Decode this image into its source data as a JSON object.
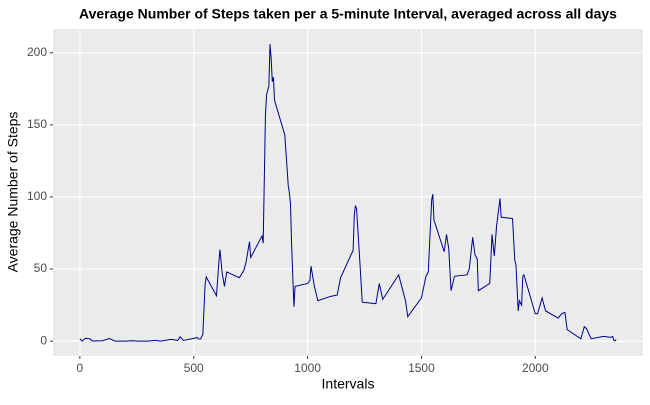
{
  "chart_data": {
    "type": "line",
    "title": "Average Number of Steps taken per a 5-minute Interval, averaged across all days",
    "x_label": "Intervals",
    "y_label": "Average Number of Steps",
    "x": [
      0,
      10,
      25,
      45,
      55,
      100,
      130,
      155,
      200,
      230,
      255,
      300,
      330,
      355,
      400,
      430,
      440,
      455,
      505,
      515,
      520,
      530,
      540,
      550,
      555,
      600,
      610,
      615,
      625,
      635,
      645,
      700,
      720,
      730,
      745,
      750,
      800,
      805,
      815,
      820,
      830,
      835,
      840,
      845,
      850,
      855,
      900,
      915,
      920,
      925,
      930,
      940,
      945,
      1000,
      1010,
      1015,
      1030,
      1045,
      1100,
      1130,
      1145,
      1200,
      1205,
      1210,
      1215,
      1230,
      1240,
      1300,
      1315,
      1330,
      1400,
      1430,
      1440,
      1500,
      1520,
      1530,
      1545,
      1550,
      1555,
      1600,
      1610,
      1620,
      1630,
      1645,
      1700,
      1710,
      1725,
      1735,
      1745,
      1750,
      1800,
      1810,
      1820,
      1830,
      1845,
      1850,
      1900,
      1910,
      1915,
      1925,
      1930,
      1940,
      1945,
      1950,
      2000,
      2010,
      2030,
      2045,
      2100,
      2115,
      2130,
      2140,
      2200,
      2215,
      2225,
      2245,
      2300,
      2330,
      2340,
      2345,
      2350,
      2355
    ],
    "values": [
      1.7,
      0.1,
      2.1,
      1.5,
      0.1,
      0.3,
      1.8,
      0,
      0,
      0.3,
      0,
      0,
      0.5,
      0,
      1.2,
      0.5,
      3,
      0.5,
      2.1,
      2.6,
      1.6,
      1.5,
      4.6,
      39.5,
      44.5,
      31.5,
      53.8,
      63.5,
      47,
      38,
      48,
      44,
      49,
      55,
      69,
      58,
      73,
      68,
      157,
      171,
      177,
      206,
      196,
      180,
      183,
      167,
      143,
      108,
      103,
      95,
      66,
      24,
      38,
      40,
      42,
      52,
      38,
      28,
      31,
      32,
      44,
      63,
      87,
      94,
      92,
      54,
      27,
      26,
      40,
      29,
      46,
      28,
      17,
      30,
      45,
      48,
      98,
      102,
      84,
      62,
      74,
      64,
      35,
      45,
      46,
      50,
      72,
      60,
      57,
      35,
      40,
      74,
      59,
      80,
      99,
      86,
      85,
      56,
      53,
      21,
      28,
      25,
      45,
      46,
      19,
      19,
      30,
      21,
      16,
      19,
      20,
      8,
      1.6,
      10,
      8.7,
      1.7,
      3.3,
      2.6,
      3.3,
      0.6,
      0.2,
      1.1
    ],
    "color": "#00008B",
    "xlim": [
      -118,
      2473
    ],
    "xticks": [
      0,
      500,
      1000,
      1500,
      2000
    ],
    "ylim": [
      -10.3,
      216.5
    ],
    "yticks": [
      0,
      50,
      100,
      150,
      200
    ],
    "grid": true
  }
}
